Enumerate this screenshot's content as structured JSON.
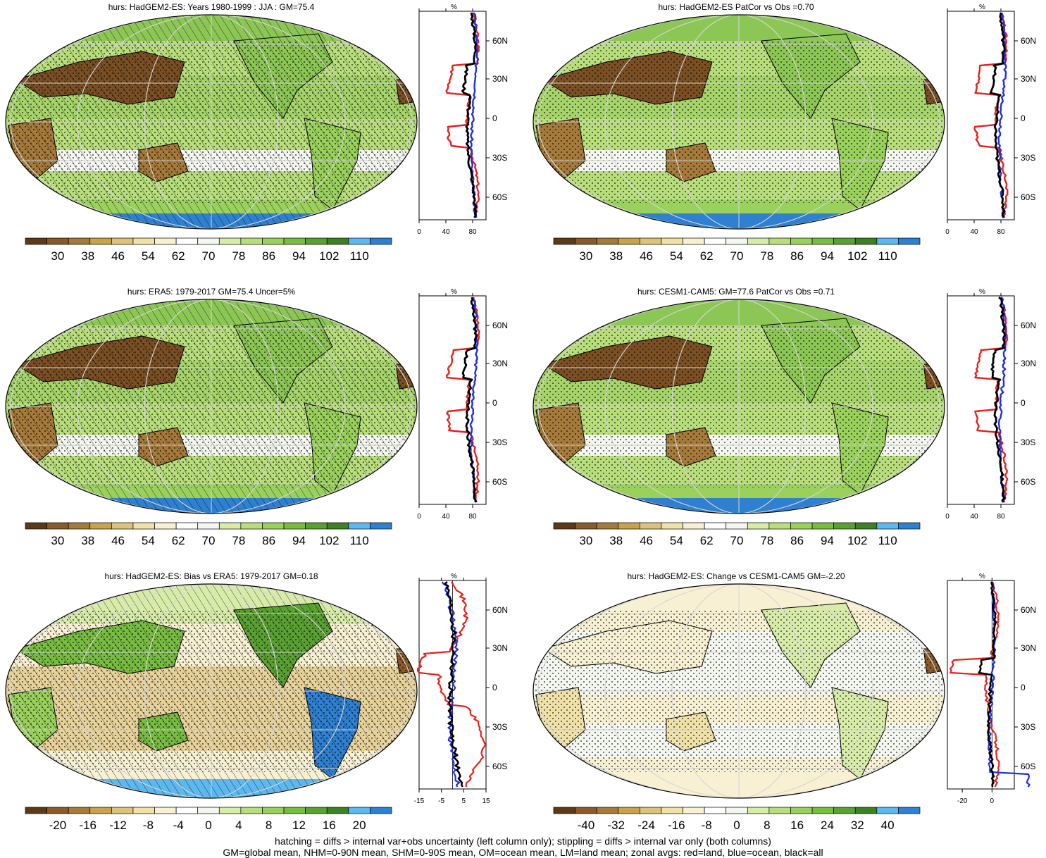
{
  "panels": [
    {
      "id": "p1",
      "title": "hurs: HadGEM2-ES: Years 1980-1999 : JJA : GM=75.4",
      "colorbar_labels": [
        "30",
        "38",
        "46",
        "54",
        "62",
        "70",
        "78",
        "86",
        "94",
        "102",
        "110"
      ],
      "colorbar_colors": [
        "#5c3a18",
        "#8a5a2a",
        "#a57a3a",
        "#c9a24e",
        "#ddc27c",
        "#efe1a8",
        "#f7f0d2",
        "#ffffff",
        "#f4f6f0",
        "#d8ecaa",
        "#b8de7c",
        "#9ad05c",
        "#78bc42",
        "#5aa032",
        "#3c8224",
        "#5cb8ef",
        "#2f80d0"
      ],
      "profile_ticks": [
        "0",
        "40",
        "80"
      ],
      "profile_unit": "%",
      "lat_labels": [
        "60N",
        "30N",
        "0",
        "30S",
        "60S"
      ],
      "hatched": true
    },
    {
      "id": "p2",
      "title": "hurs: HadGEM2-ES PatCor vs Obs =0.70",
      "colorbar_labels": [
        "30",
        "38",
        "46",
        "54",
        "62",
        "70",
        "78",
        "86",
        "94",
        "102",
        "110"
      ],
      "colorbar_colors": [
        "#5c3a18",
        "#8a5a2a",
        "#a57a3a",
        "#c9a24e",
        "#ddc27c",
        "#efe1a8",
        "#f7f0d2",
        "#ffffff",
        "#f4f6f0",
        "#d8ecaa",
        "#b8de7c",
        "#9ad05c",
        "#78bc42",
        "#5aa032",
        "#3c8224",
        "#5cb8ef",
        "#2f80d0"
      ],
      "profile_ticks": [
        "0",
        "40",
        "80"
      ],
      "profile_unit": "%",
      "lat_labels": [
        "60N",
        "30N",
        "0",
        "30S",
        "60S"
      ],
      "hatched": false
    },
    {
      "id": "p3",
      "title": "hurs: ERA5: 1979-2017 GM=75.4 Uncer=5%",
      "colorbar_labels": [
        "30",
        "38",
        "46",
        "54",
        "62",
        "70",
        "78",
        "86",
        "94",
        "102",
        "110"
      ],
      "colorbar_colors": [
        "#5c3a18",
        "#8a5a2a",
        "#a57a3a",
        "#c9a24e",
        "#ddc27c",
        "#efe1a8",
        "#f7f0d2",
        "#ffffff",
        "#f4f6f0",
        "#d8ecaa",
        "#b8de7c",
        "#9ad05c",
        "#78bc42",
        "#5aa032",
        "#3c8224",
        "#5cb8ef",
        "#2f80d0"
      ],
      "profile_ticks": [
        "0",
        "40",
        "80"
      ],
      "profile_unit": "%",
      "lat_labels": [
        "60N",
        "30N",
        "0",
        "30S",
        "60S"
      ],
      "hatched": true
    },
    {
      "id": "p4",
      "title": "hurs: CESM1-CAM5: GM=77.6 PatCor vs Obs =0.71",
      "colorbar_labels": [
        "30",
        "38",
        "46",
        "54",
        "62",
        "70",
        "78",
        "86",
        "94",
        "102",
        "110"
      ],
      "colorbar_colors": [
        "#5c3a18",
        "#8a5a2a",
        "#a57a3a",
        "#c9a24e",
        "#ddc27c",
        "#efe1a8",
        "#f7f0d2",
        "#ffffff",
        "#f4f6f0",
        "#d8ecaa",
        "#b8de7c",
        "#9ad05c",
        "#78bc42",
        "#5aa032",
        "#3c8224",
        "#5cb8ef",
        "#2f80d0"
      ],
      "profile_ticks": [
        "0",
        "40",
        "80"
      ],
      "profile_unit": "%",
      "lat_labels": [
        "60N",
        "30N",
        "0",
        "30S",
        "60S"
      ],
      "hatched": false
    },
    {
      "id": "p5",
      "title": "hurs: HadGEM2-ES: Bias vs ERA5: 1979-2017 GM=0.18",
      "colorbar_labels": [
        "-20",
        "-16",
        "-12",
        "-8",
        "-4",
        "0",
        "4",
        "8",
        "12",
        "16",
        "20"
      ],
      "colorbar_colors": [
        "#5c3a18",
        "#8a5a2a",
        "#a57a3a",
        "#c9a24e",
        "#ddc27c",
        "#efe1a8",
        "#f7f0d2",
        "#ffffff",
        "#f4f6f0",
        "#d8ecaa",
        "#b8de7c",
        "#9ad05c",
        "#78bc42",
        "#5aa032",
        "#3c8224",
        "#5cb8ef",
        "#2f80d0"
      ],
      "profile_ticks": [
        "-15",
        "-5",
        "5",
        "15"
      ],
      "profile_unit": "%",
      "lat_labels": [
        "60N",
        "30N",
        "0",
        "30S",
        "60S"
      ],
      "hatched": true
    },
    {
      "id": "p6",
      "title": "hurs: HadGEM2-ES: Change vs CESM1-CAM5 GM=-2.20",
      "colorbar_labels": [
        "-40",
        "-32",
        "-24",
        "-16",
        "-8",
        "0",
        "8",
        "16",
        "24",
        "32",
        "40"
      ],
      "colorbar_colors": [
        "#5c3a18",
        "#8a5a2a",
        "#a57a3a",
        "#c9a24e",
        "#ddc27c",
        "#efe1a8",
        "#f7f0d2",
        "#ffffff",
        "#f4f6f0",
        "#d8ecaa",
        "#b8de7c",
        "#9ad05c",
        "#78bc42",
        "#5aa032",
        "#3c8224",
        "#5cb8ef",
        "#2f80d0"
      ],
      "profile_ticks": [
        "-20",
        "0"
      ],
      "profile_unit": "%",
      "lat_labels": [
        "60N",
        "30N",
        "0",
        "30S",
        "60S"
      ],
      "hatched": false
    }
  ],
  "footnote": {
    "line1": "hatching = diffs > internal var+obs uncertainty (left column only); stippling = diffs > internal var only (both columns)",
    "line2": "GM=global mean, NHM=0-90N mean, SHM=0-90S mean, OM=ocean mean, LM=land mean; zonal avgs: red=land, blue=ocean, black=all"
  },
  "colors": {
    "land_line": "#e8201a",
    "ocean_line": "#1f2ee8",
    "all_line": "#000000"
  }
}
